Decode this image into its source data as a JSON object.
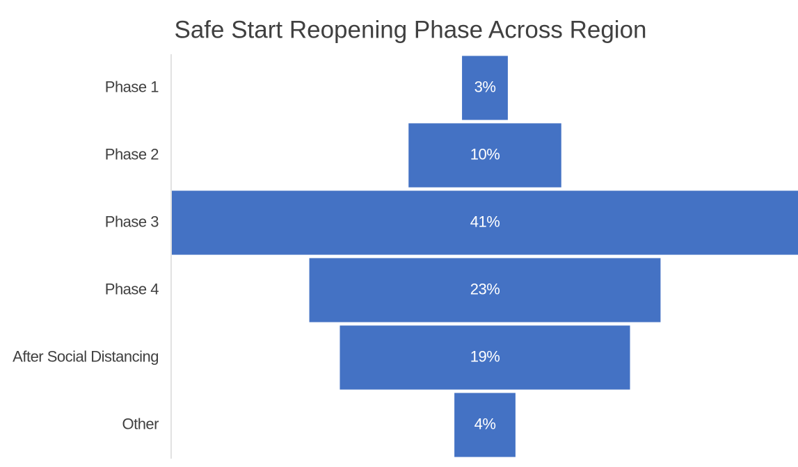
{
  "chart_data": {
    "type": "funnel",
    "title": "Safe Start Reopening Phase Across Region",
    "categories": [
      "Phase 1",
      "Phase 2",
      "Phase 3",
      "Phase 4",
      "After Social Distancing",
      "Other"
    ],
    "values": [
      3,
      10,
      41,
      23,
      19,
      4
    ],
    "value_labels": [
      "3%",
      "10%",
      "41%",
      "23%",
      "19%",
      "4%"
    ],
    "color": "#4472c4"
  }
}
